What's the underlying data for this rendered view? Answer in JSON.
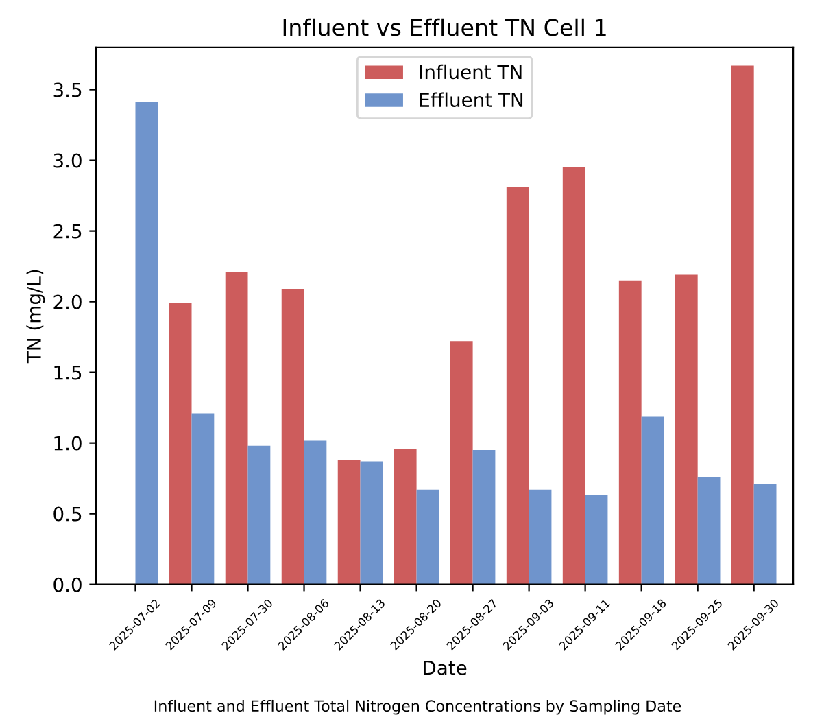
{
  "chart_data": {
    "type": "bar",
    "title": "Influent vs Effluent TN Cell 1",
    "xlabel": "Date",
    "ylabel": "TN (mg/L)",
    "categories": [
      "2025-07-02",
      "2025-07-09",
      "2025-07-30",
      "2025-08-06",
      "2025-08-13",
      "2025-08-20",
      "2025-08-27",
      "2025-09-03",
      "2025-09-11",
      "2025-09-18",
      "2025-09-25",
      "2025-09-30"
    ],
    "series": [
      {
        "name": "Influent TN",
        "color": "#cd5c5c",
        "values": [
          null,
          1.99,
          2.21,
          2.09,
          0.88,
          0.96,
          1.72,
          2.81,
          2.95,
          2.15,
          2.19,
          3.67
        ]
      },
      {
        "name": "Effluent TN",
        "color": "#6f94cc",
        "values": [
          3.41,
          1.21,
          0.98,
          1.02,
          0.87,
          0.67,
          0.95,
          0.67,
          0.63,
          1.19,
          0.76,
          0.71
        ]
      }
    ],
    "ylim": [
      0,
      3.8
    ],
    "yticks": [
      {
        "value": 0,
        "label": "0.0"
      },
      {
        "value": 0.5,
        "label": "0.5"
      },
      {
        "value": 1,
        "label": "1.0"
      },
      {
        "value": 1.5,
        "label": "1.5"
      },
      {
        "value": 2,
        "label": "2.0"
      },
      {
        "value": 2.5,
        "label": "2.5"
      },
      {
        "value": 3,
        "label": "3.0"
      },
      {
        "value": 3.5,
        "label": "3.5"
      }
    ],
    "legend": "upper center",
    "grid": false,
    "annotations": [
      "Influent and Effluent Total Nitrogen Concentrations by Sampling Date"
    ]
  }
}
